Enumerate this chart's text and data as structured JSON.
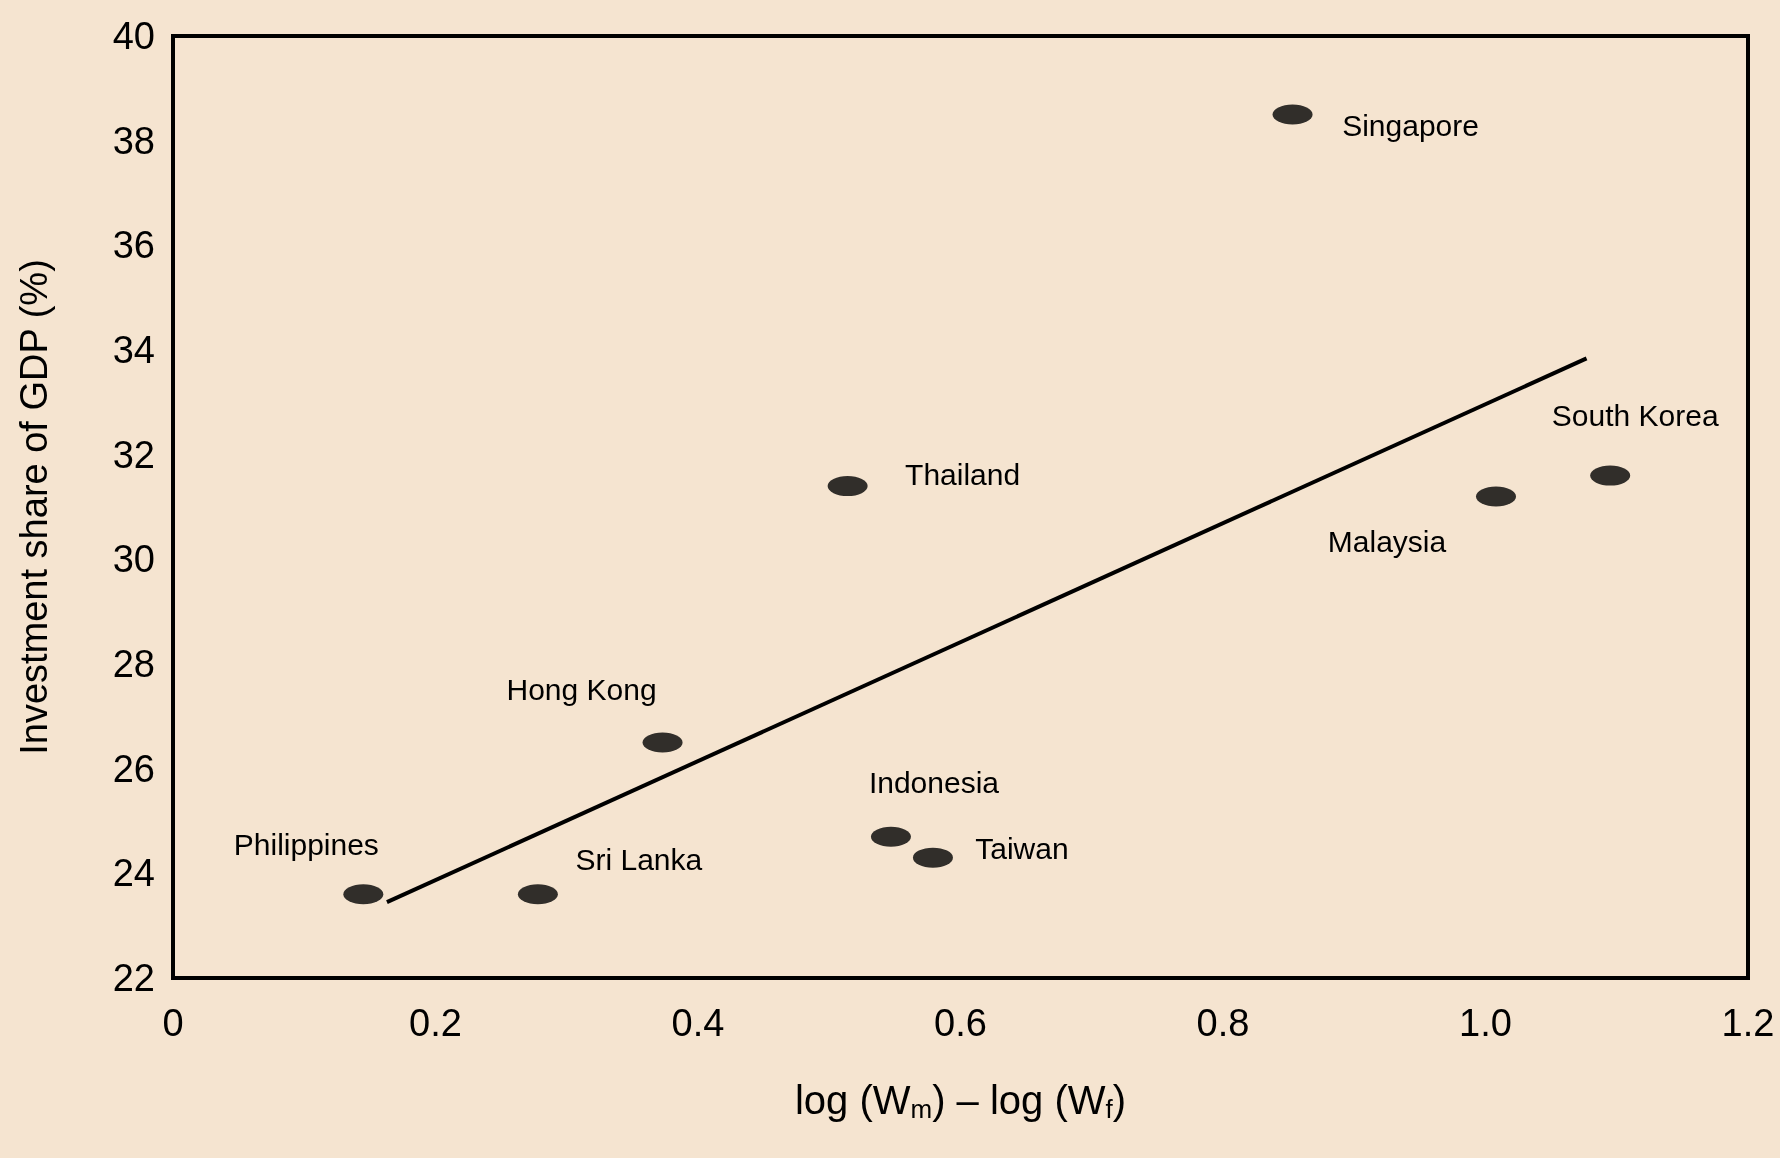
{
  "chart_data": {
    "type": "scatter",
    "xlabel": "log (W$_{m}$) – log (W$_{f}$)",
    "ylabel": "Investment share of GDP (%)",
    "xlim": [
      0,
      1.2
    ],
    "xticks": [
      0,
      0.2,
      0.4,
      0.6,
      0.8,
      {
        "value": 1.0,
        "label": "1.0"
      },
      1.2
    ],
    "ylim": [
      22,
      40
    ],
    "yticks": [
      22,
      24,
      26,
      28,
      30,
      32,
      34,
      36,
      38,
      40
    ],
    "grid": false,
    "series": [
      {
        "marker": "circle",
        "color": "#000000",
        "x": [
          0.145,
          0.278,
          0.373,
          0.514,
          0.547,
          0.579,
          0.853,
          1.008,
          1.095
        ],
        "values": [
          23.6,
          23.6,
          26.5,
          31.4,
          24.7,
          24.3,
          38.5,
          31.2,
          31.6
        ]
      },
      {
        "type": "line",
        "marker": "none",
        "color": "#000000",
        "x": [
          0.163,
          1.077
        ],
        "values": [
          23.45,
          33.84
        ]
      }
    ],
    "annotations": [
      {
        "text": "Philippines",
        "x": 0.145,
        "y": 23.6
      },
      {
        "text": "Sri Lanka",
        "x": 0.278,
        "y": 23.6
      },
      {
        "text": "Hong Kong",
        "x": 0.373,
        "y": 26.5
      },
      {
        "text": "Thailand",
        "x": 0.514,
        "y": 31.4
      },
      {
        "text": "Indonesia",
        "x": 0.547,
        "y": 24.7
      },
      {
        "text": "Taiwan",
        "x": 0.579,
        "y": 24.3
      },
      {
        "text": "Singapore",
        "x": 0.853,
        "y": 38.5
      },
      {
        "text": "Malaysia",
        "x": 1.008,
        "y": 31.2
      },
      {
        "text": "South Korea",
        "x": 1.095,
        "y": 31.6
      }
    ]
  }
}
